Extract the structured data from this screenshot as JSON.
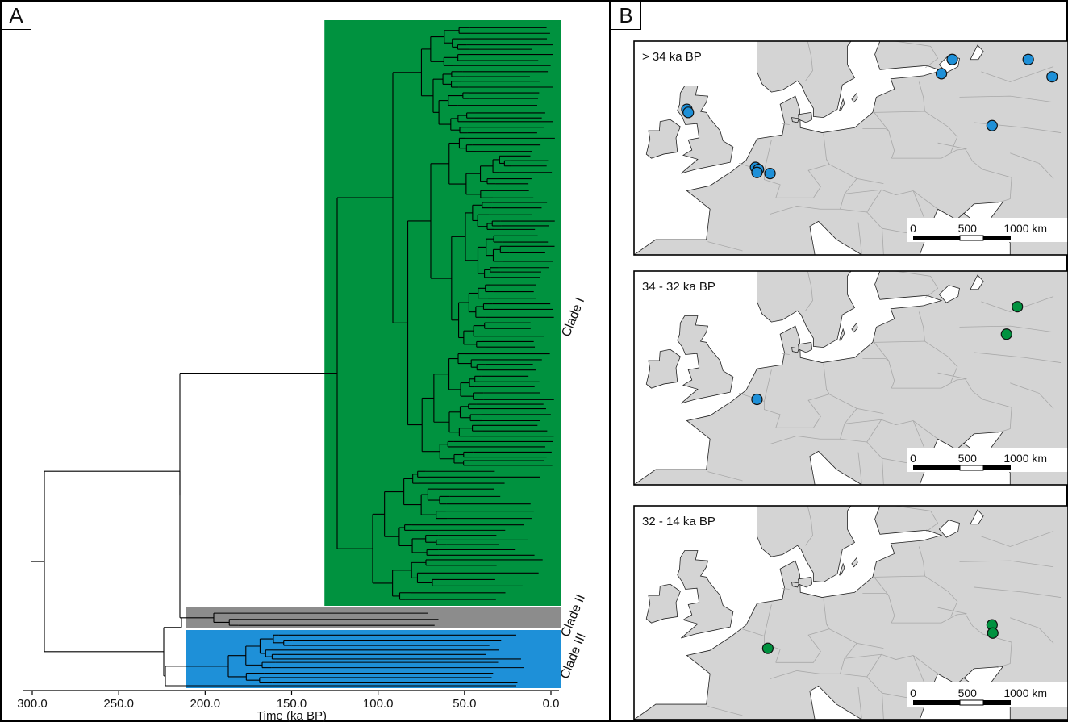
{
  "panel_a": {
    "letter": "A",
    "x_axis": {
      "label": "Time (ka BP)",
      "ticks": [
        "300.0",
        "250.0",
        "200.0",
        "150.0",
        "100.0",
        "50.0",
        "0.0"
      ],
      "range": [
        300,
        0
      ]
    },
    "clades": [
      {
        "name": "Clade I",
        "color": "#00923f",
        "start_ka": 131
      },
      {
        "name": "Clade II",
        "color": "#8c8c8c",
        "start_ka": 211
      },
      {
        "name": "Clade III",
        "color": "#1e90d8",
        "start_ka": 211
      }
    ]
  },
  "panel_b": {
    "letter": "B",
    "maps": [
      {
        "period": "> 34 ka BP",
        "scale": {
          "labels": [
            "0",
            "500",
            "1000 km"
          ]
        },
        "sites": [
          {
            "lon": -4.7,
            "lat": 56.3,
            "clade": "Clade III"
          },
          {
            "lon": -4.5,
            "lat": 56.0,
            "clade": "Clade III"
          },
          {
            "lon": 4.8,
            "lat": 50.6,
            "clade": "Clade III"
          },
          {
            "lon": 5.2,
            "lat": 50.4,
            "clade": "Clade III"
          },
          {
            "lon": 5.0,
            "lat": 50.1,
            "clade": "Clade III"
          },
          {
            "lon": 6.8,
            "lat": 50.0,
            "clade": "Clade III"
          },
          {
            "lon": 30.5,
            "lat": 59.8,
            "clade": "Clade III"
          },
          {
            "lon": 32.0,
            "lat": 61.2,
            "clade": "Clade III"
          },
          {
            "lon": 37.5,
            "lat": 54.7,
            "clade": "Clade III"
          },
          {
            "lon": 42.5,
            "lat": 61.2,
            "clade": "Clade III"
          },
          {
            "lon": 45.8,
            "lat": 59.5,
            "clade": "Clade III"
          }
        ]
      },
      {
        "period": "34 - 32 ka BP",
        "scale": {
          "labels": [
            "0",
            "500",
            "1000 km"
          ]
        },
        "sites": [
          {
            "lon": 5.0,
            "lat": 50.4,
            "clade": "Clade III"
          },
          {
            "lon": 39.5,
            "lat": 56.8,
            "clade": "Clade I"
          },
          {
            "lon": 41.0,
            "lat": 59.5,
            "clade": "Clade I"
          }
        ]
      },
      {
        "period": "32 - 14 ka BP",
        "scale": {
          "labels": [
            "0",
            "500",
            "1000 km"
          ]
        },
        "sites": [
          {
            "lon": 6.5,
            "lat": 49.0,
            "clade": "Clade I"
          },
          {
            "lon": 37.5,
            "lat": 51.3,
            "clade": "Clade I"
          },
          {
            "lon": 37.6,
            "lat": 50.5,
            "clade": "Clade I"
          }
        ]
      }
    ]
  }
}
